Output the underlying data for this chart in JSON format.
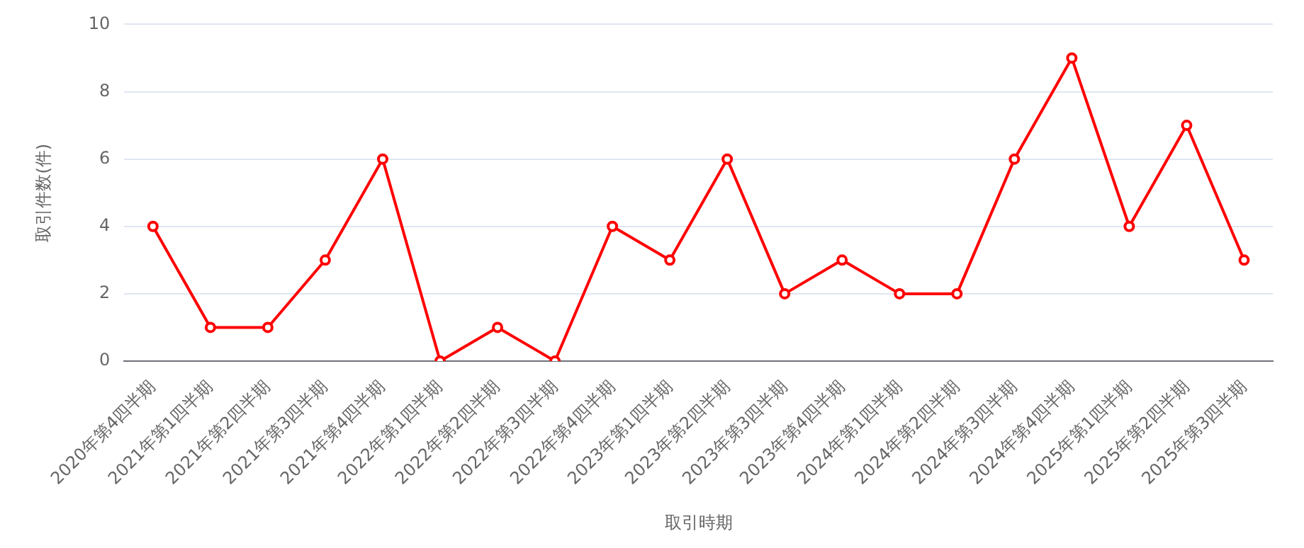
{
  "chart_data": {
    "type": "line",
    "xlabel": "取引時期",
    "ylabel": "取引件数(件)",
    "categories": [
      "2020年第4四半期",
      "2021年第1四半期",
      "2021年第2四半期",
      "2021年第3四半期",
      "2021年第4四半期",
      "2022年第1四半期",
      "2022年第2四半期",
      "2022年第3四半期",
      "2022年第4四半期",
      "2023年第1四半期",
      "2023年第2四半期",
      "2023年第3四半期",
      "2023年第4四半期",
      "2024年第1四半期",
      "2024年第2四半期",
      "2024年第3四半期",
      "2024年第4四半期",
      "2025年第1四半期",
      "2025年第2四半期",
      "2025年第3四半期"
    ],
    "series": [
      {
        "color": "#ff0000",
        "values": [
          4,
          1,
          1,
          3,
          6,
          0,
          1,
          0,
          4,
          3,
          6,
          2,
          3,
          2,
          2,
          6,
          9,
          4,
          7,
          3
        ]
      }
    ],
    "ylim": [
      0,
      10
    ],
    "yticks": [
      0,
      2,
      4,
      6,
      8,
      10
    ],
    "grid": "y",
    "legend": false,
    "marker": "circle",
    "line_style": "solid"
  }
}
